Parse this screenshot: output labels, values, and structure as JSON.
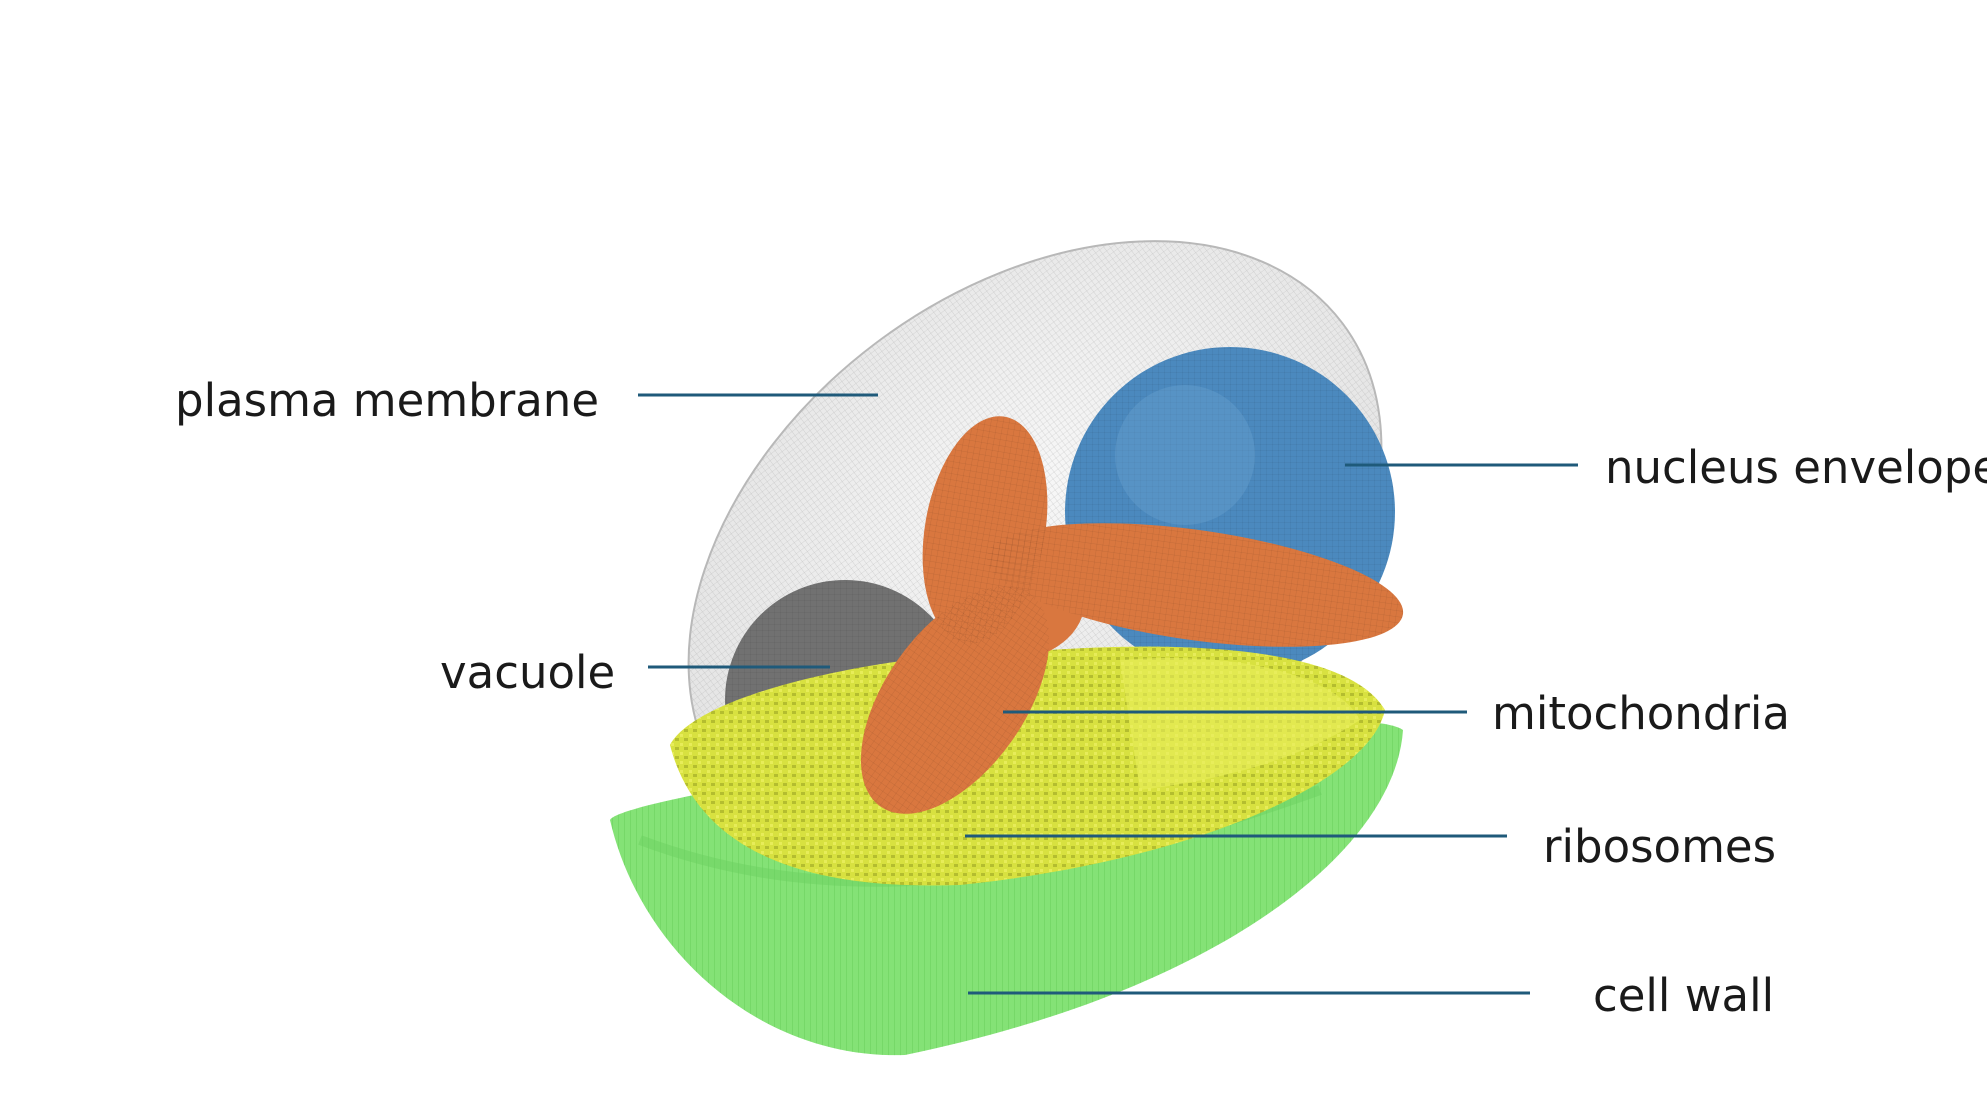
{
  "labels": {
    "plasma_membrane": "plasma membrane",
    "nucleus_envelope": "nucleus envelope",
    "vacuole": "vacuole",
    "mitochondria": "mitochondria",
    "ribosomes": "ribosomes",
    "cell_wall": "cell wall"
  },
  "colors": {
    "plasma_membrane": "#c8c8c8",
    "nucleus_envelope": "#4a88bd",
    "vacuole": "#6e6e6e",
    "mitochondria": "#d9763f",
    "ribosomes": "#d5df3c",
    "cell_wall": "#7fe070",
    "leader_lines": "#1f5a7a"
  }
}
